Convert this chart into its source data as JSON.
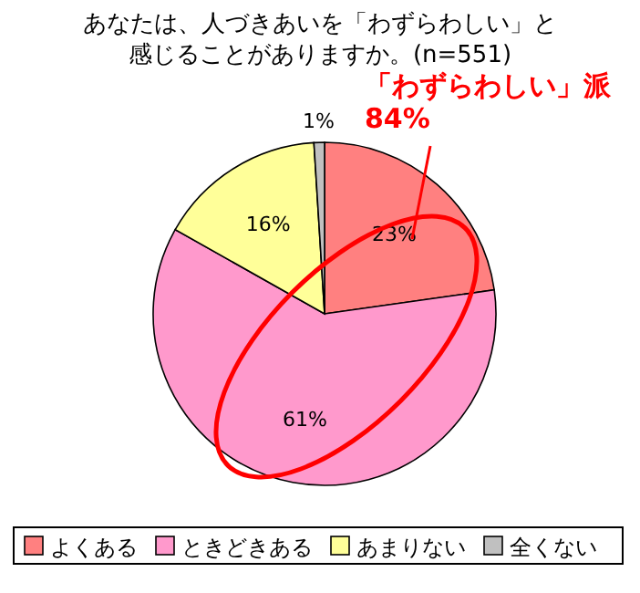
{
  "chart_data": {
    "type": "pie",
    "title": "あなたは、人づきあいを「わずらわしい」と感じることがありますか。(n=551)",
    "categories": [
      "よくある",
      "ときどきある",
      "あまりない",
      "全くない"
    ],
    "values": [
      23,
      61,
      16,
      1
    ],
    "colors": [
      "#ff8080",
      "#ff99cc",
      "#ffff99",
      "#c0c0c0"
    ],
    "value_labels": [
      "23%",
      "61%",
      "16%",
      "1%"
    ],
    "annotations": [
      "「わずらわしい」派",
      "84%"
    ],
    "legend": "bottom"
  }
}
